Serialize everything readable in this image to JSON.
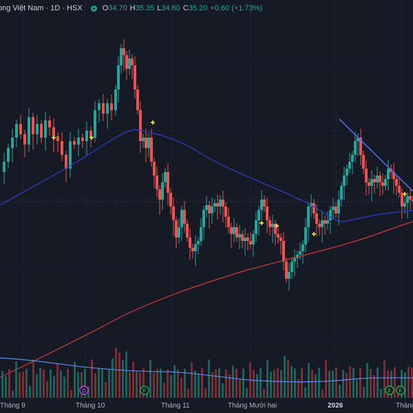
{
  "legend": {
    "symbol_text": "ong Việt Nam · 1D · HSX",
    "o_label": "O",
    "o_value": "34.70",
    "h_label": "H",
    "h_value": "35.35",
    "l_label": "L",
    "l_value": "34.60",
    "c_label": "C",
    "c_value": "35.20",
    "change": "+0.60 (+1.73%)"
  },
  "colors": {
    "background": "#161a25",
    "up": "#26a69a",
    "down": "#ef5350",
    "ma_short": "#2d3ed1",
    "ma_long": "#d23a3f",
    "trendline": "#4a6cf7",
    "volume_ma": "#5b8def",
    "marker": "#ffeb3b",
    "gridline": "#1f2330"
  },
  "time_axis": {
    "labels": [
      "Tháng 9",
      "Tháng 10",
      "Tháng 11",
      "Tháng Mười hai",
      "2026",
      "Tháng"
    ],
    "bold_label": "2026"
  },
  "event_badges": [
    "D",
    "F",
    "F",
    "F"
  ],
  "chart_data": {
    "type": "candlestick",
    "timeframe": "1D",
    "exchange": "HSX",
    "last_bar": {
      "open": 34.7,
      "high": 35.35,
      "low": 34.6,
      "close": 35.2,
      "change": 0.6,
      "change_pct": 1.73
    },
    "overlays": [
      "moving-average-short",
      "moving-average-long",
      "trendline",
      "volume",
      "volume-moving-average"
    ],
    "legend_placement": "top-left",
    "grid": true
  }
}
